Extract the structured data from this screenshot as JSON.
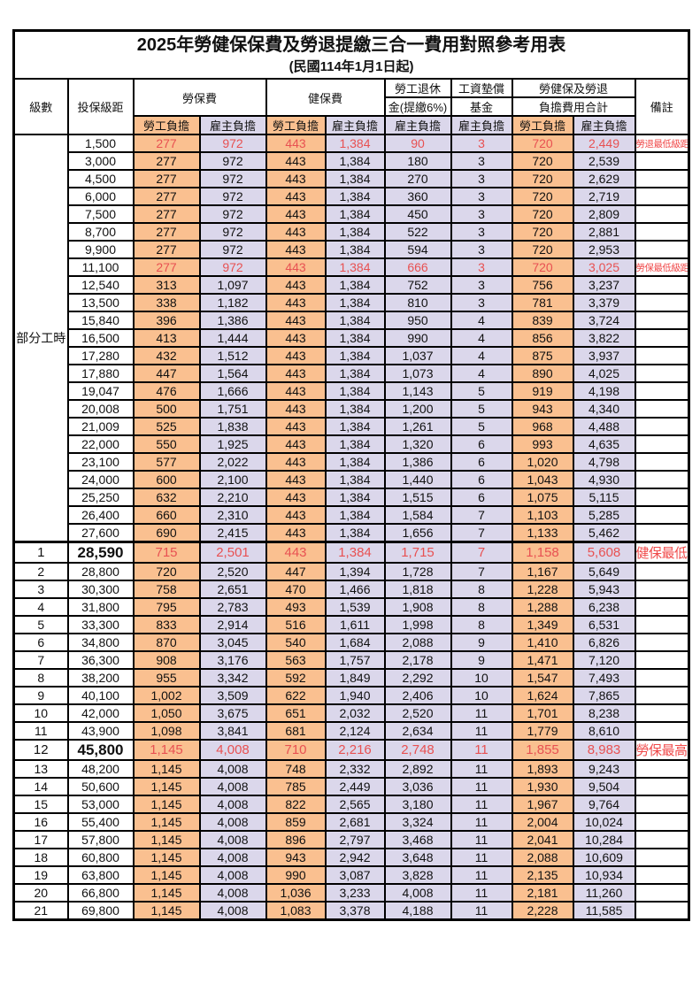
{
  "title": "2025年勞健保保費及勞退提繳三合一費用對照參考用表",
  "subtitle": "(民國114年1月1日起)",
  "colors": {
    "employee_bg": "#FAC090",
    "employer_bg": "#DBD7EB",
    "red_text": "#E85152",
    "border": "#000000"
  },
  "header": {
    "level": "級數",
    "bracket": "投保級距",
    "labor_ins": "勞保費",
    "health_ins": "健保費",
    "pension_line1": "勞工退休",
    "pension_line2": "金(提繳6%)",
    "wage_fund_line1": "工資墊償",
    "wage_fund_line2": "基金",
    "total_line1": "勞健保及勞退",
    "total_line2": "負擔費用合計",
    "remark": "備註",
    "employee": "勞工負擔",
    "employer": "雇主負擔"
  },
  "part_time_label": "部分工時",
  "part_time_row_count": 23,
  "rows": [
    {
      "level": "",
      "bracket": "1,500",
      "v": [
        "277",
        "972",
        "443",
        "1,384",
        "90",
        "3",
        "720",
        "2,449"
      ],
      "remark": "勞退最低級距",
      "red": true,
      "big": false
    },
    {
      "level": "",
      "bracket": "3,000",
      "v": [
        "277",
        "972",
        "443",
        "1,384",
        "180",
        "3",
        "720",
        "2,539"
      ],
      "remark": "",
      "red": false,
      "big": false
    },
    {
      "level": "",
      "bracket": "4,500",
      "v": [
        "277",
        "972",
        "443",
        "1,384",
        "270",
        "3",
        "720",
        "2,629"
      ],
      "remark": "",
      "red": false,
      "big": false
    },
    {
      "level": "",
      "bracket": "6,000",
      "v": [
        "277",
        "972",
        "443",
        "1,384",
        "360",
        "3",
        "720",
        "2,719"
      ],
      "remark": "",
      "red": false,
      "big": false
    },
    {
      "level": "",
      "bracket": "7,500",
      "v": [
        "277",
        "972",
        "443",
        "1,384",
        "450",
        "3",
        "720",
        "2,809"
      ],
      "remark": "",
      "red": false,
      "big": false
    },
    {
      "level": "",
      "bracket": "8,700",
      "v": [
        "277",
        "972",
        "443",
        "1,384",
        "522",
        "3",
        "720",
        "2,881"
      ],
      "remark": "",
      "red": false,
      "big": false
    },
    {
      "level": "",
      "bracket": "9,900",
      "v": [
        "277",
        "972",
        "443",
        "1,384",
        "594",
        "3",
        "720",
        "2,953"
      ],
      "remark": "",
      "red": false,
      "big": false
    },
    {
      "level": "",
      "bracket": "11,100",
      "v": [
        "277",
        "972",
        "443",
        "1,384",
        "666",
        "3",
        "720",
        "3,025"
      ],
      "remark": "勞保最低級距",
      "red": true,
      "big": false
    },
    {
      "level": "",
      "bracket": "12,540",
      "v": [
        "313",
        "1,097",
        "443",
        "1,384",
        "752",
        "3",
        "756",
        "3,237"
      ],
      "remark": "",
      "red": false,
      "big": false
    },
    {
      "level": "",
      "bracket": "13,500",
      "v": [
        "338",
        "1,182",
        "443",
        "1,384",
        "810",
        "3",
        "781",
        "3,379"
      ],
      "remark": "",
      "red": false,
      "big": false
    },
    {
      "level": "",
      "bracket": "15,840",
      "v": [
        "396",
        "1,386",
        "443",
        "1,384",
        "950",
        "4",
        "839",
        "3,724"
      ],
      "remark": "",
      "red": false,
      "big": false
    },
    {
      "level": "",
      "bracket": "16,500",
      "v": [
        "413",
        "1,444",
        "443",
        "1,384",
        "990",
        "4",
        "856",
        "3,822"
      ],
      "remark": "",
      "red": false,
      "big": false
    },
    {
      "level": "",
      "bracket": "17,280",
      "v": [
        "432",
        "1,512",
        "443",
        "1,384",
        "1,037",
        "4",
        "875",
        "3,937"
      ],
      "remark": "",
      "red": false,
      "big": false
    },
    {
      "level": "",
      "bracket": "17,880",
      "v": [
        "447",
        "1,564",
        "443",
        "1,384",
        "1,073",
        "4",
        "890",
        "4,025"
      ],
      "remark": "",
      "red": false,
      "big": false
    },
    {
      "level": "",
      "bracket": "19,047",
      "v": [
        "476",
        "1,666",
        "443",
        "1,384",
        "1,143",
        "5",
        "919",
        "4,198"
      ],
      "remark": "",
      "red": false,
      "big": false
    },
    {
      "level": "",
      "bracket": "20,008",
      "v": [
        "500",
        "1,751",
        "443",
        "1,384",
        "1,200",
        "5",
        "943",
        "4,340"
      ],
      "remark": "",
      "red": false,
      "big": false
    },
    {
      "level": "",
      "bracket": "21,009",
      "v": [
        "525",
        "1,838",
        "443",
        "1,384",
        "1,261",
        "5",
        "968",
        "4,488"
      ],
      "remark": "",
      "red": false,
      "big": false
    },
    {
      "level": "",
      "bracket": "22,000",
      "v": [
        "550",
        "1,925",
        "443",
        "1,384",
        "1,320",
        "6",
        "993",
        "4,635"
      ],
      "remark": "",
      "red": false,
      "big": false
    },
    {
      "level": "",
      "bracket": "23,100",
      "v": [
        "577",
        "2,022",
        "443",
        "1,384",
        "1,386",
        "6",
        "1,020",
        "4,798"
      ],
      "remark": "",
      "red": false,
      "big": false
    },
    {
      "level": "",
      "bracket": "24,000",
      "v": [
        "600",
        "2,100",
        "443",
        "1,384",
        "1,440",
        "6",
        "1,043",
        "4,930"
      ],
      "remark": "",
      "red": false,
      "big": false
    },
    {
      "level": "",
      "bracket": "25,250",
      "v": [
        "632",
        "2,210",
        "443",
        "1,384",
        "1,515",
        "6",
        "1,075",
        "5,115"
      ],
      "remark": "",
      "red": false,
      "big": false
    },
    {
      "level": "",
      "bracket": "26,400",
      "v": [
        "660",
        "2,310",
        "443",
        "1,384",
        "1,584",
        "7",
        "1,103",
        "5,285"
      ],
      "remark": "",
      "red": false,
      "big": false
    },
    {
      "level": "",
      "bracket": "27,600",
      "v": [
        "690",
        "2,415",
        "443",
        "1,384",
        "1,656",
        "7",
        "1,133",
        "5,462"
      ],
      "remark": "",
      "red": false,
      "big": false
    },
    {
      "level": "1",
      "bracket": "28,590",
      "v": [
        "715",
        "2,501",
        "443",
        "1,384",
        "1,715",
        "7",
        "1,158",
        "5,608"
      ],
      "remark": "健保最低級距",
      "red": true,
      "big": true,
      "thickTop": true
    },
    {
      "level": "2",
      "bracket": "28,800",
      "v": [
        "720",
        "2,520",
        "447",
        "1,394",
        "1,728",
        "7",
        "1,167",
        "5,649"
      ],
      "remark": "",
      "red": false,
      "big": false
    },
    {
      "level": "3",
      "bracket": "30,300",
      "v": [
        "758",
        "2,651",
        "470",
        "1,466",
        "1,818",
        "8",
        "1,228",
        "5,943"
      ],
      "remark": "",
      "red": false,
      "big": false
    },
    {
      "level": "4",
      "bracket": "31,800",
      "v": [
        "795",
        "2,783",
        "493",
        "1,539",
        "1,908",
        "8",
        "1,288",
        "6,238"
      ],
      "remark": "",
      "red": false,
      "big": false
    },
    {
      "level": "5",
      "bracket": "33,300",
      "v": [
        "833",
        "2,914",
        "516",
        "1,611",
        "1,998",
        "8",
        "1,349",
        "6,531"
      ],
      "remark": "",
      "red": false,
      "big": false
    },
    {
      "level": "6",
      "bracket": "34,800",
      "v": [
        "870",
        "3,045",
        "540",
        "1,684",
        "2,088",
        "9",
        "1,410",
        "6,826"
      ],
      "remark": "",
      "red": false,
      "big": false
    },
    {
      "level": "7",
      "bracket": "36,300",
      "v": [
        "908",
        "3,176",
        "563",
        "1,757",
        "2,178",
        "9",
        "1,471",
        "7,120"
      ],
      "remark": "",
      "red": false,
      "big": false
    },
    {
      "level": "8",
      "bracket": "38,200",
      "v": [
        "955",
        "3,342",
        "592",
        "1,849",
        "2,292",
        "10",
        "1,547",
        "7,493"
      ],
      "remark": "",
      "red": false,
      "big": false
    },
    {
      "level": "9",
      "bracket": "40,100",
      "v": [
        "1,002",
        "3,509",
        "622",
        "1,940",
        "2,406",
        "10",
        "1,624",
        "7,865"
      ],
      "remark": "",
      "red": false,
      "big": false
    },
    {
      "level": "10",
      "bracket": "42,000",
      "v": [
        "1,050",
        "3,675",
        "651",
        "2,032",
        "2,520",
        "11",
        "1,701",
        "8,238"
      ],
      "remark": "",
      "red": false,
      "big": false
    },
    {
      "level": "11",
      "bracket": "43,900",
      "v": [
        "1,098",
        "3,841",
        "681",
        "2,124",
        "2,634",
        "11",
        "1,779",
        "8,610"
      ],
      "remark": "",
      "red": false,
      "big": false
    },
    {
      "level": "12",
      "bracket": "45,800",
      "v": [
        "1,145",
        "4,008",
        "710",
        "2,216",
        "2,748",
        "11",
        "1,855",
        "8,983"
      ],
      "remark": "勞保最高級距",
      "red": true,
      "big": true
    },
    {
      "level": "13",
      "bracket": "48,200",
      "v": [
        "1,145",
        "4,008",
        "748",
        "2,332",
        "2,892",
        "11",
        "1,893",
        "9,243"
      ],
      "remark": "",
      "red": false,
      "big": false
    },
    {
      "level": "14",
      "bracket": "50,600",
      "v": [
        "1,145",
        "4,008",
        "785",
        "2,449",
        "3,036",
        "11",
        "1,930",
        "9,504"
      ],
      "remark": "",
      "red": false,
      "big": false
    },
    {
      "level": "15",
      "bracket": "53,000",
      "v": [
        "1,145",
        "4,008",
        "822",
        "2,565",
        "3,180",
        "11",
        "1,967",
        "9,764"
      ],
      "remark": "",
      "red": false,
      "big": false
    },
    {
      "level": "16",
      "bracket": "55,400",
      "v": [
        "1,145",
        "4,008",
        "859",
        "2,681",
        "3,324",
        "11",
        "2,004",
        "10,024"
      ],
      "remark": "",
      "red": false,
      "big": false
    },
    {
      "level": "17",
      "bracket": "57,800",
      "v": [
        "1,145",
        "4,008",
        "896",
        "2,797",
        "3,468",
        "11",
        "2,041",
        "10,284"
      ],
      "remark": "",
      "red": false,
      "big": false
    },
    {
      "level": "18",
      "bracket": "60,800",
      "v": [
        "1,145",
        "4,008",
        "943",
        "2,942",
        "3,648",
        "11",
        "2,088",
        "10,609"
      ],
      "remark": "",
      "red": false,
      "big": false
    },
    {
      "level": "19",
      "bracket": "63,800",
      "v": [
        "1,145",
        "4,008",
        "990",
        "3,087",
        "3,828",
        "11",
        "2,135",
        "10,934"
      ],
      "remark": "",
      "red": false,
      "big": false
    },
    {
      "level": "20",
      "bracket": "66,800",
      "v": [
        "1,145",
        "4,008",
        "1,036",
        "3,233",
        "4,008",
        "11",
        "2,181",
        "11,260"
      ],
      "remark": "",
      "red": false,
      "big": false
    },
    {
      "level": "21",
      "bracket": "69,800",
      "v": [
        "1,145",
        "4,008",
        "1,083",
        "3,378",
        "4,188",
        "11",
        "2,228",
        "11,585"
      ],
      "remark": "",
      "red": false,
      "big": false
    }
  ],
  "value_col_types": [
    "emp",
    "empr",
    "emp",
    "empr",
    "empr",
    "empr",
    "emp",
    "empr"
  ]
}
